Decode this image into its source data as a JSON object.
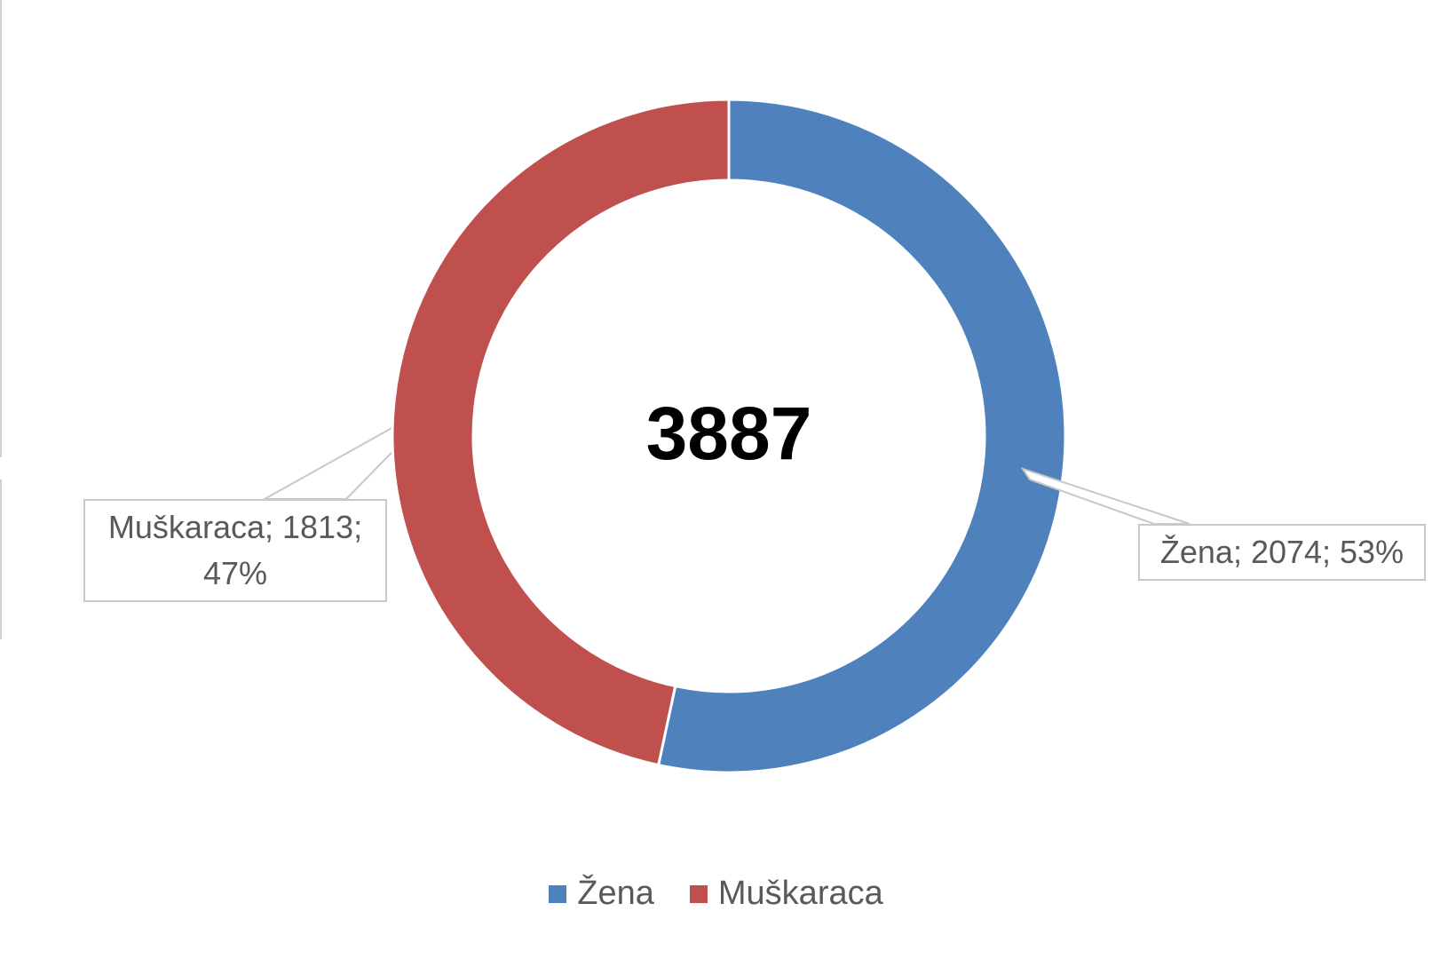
{
  "chart_data": {
    "type": "donut",
    "categories": [
      "Žena",
      "Muškaraca"
    ],
    "values": [
      2074,
      1813
    ],
    "value_labels": [
      "Žena; 2074; 53%",
      "Muškaraca; 1813; 47%"
    ],
    "colors": [
      "#4f81bd",
      "#c0504d"
    ],
    "center_label": "3887",
    "legend": "bottom"
  }
}
